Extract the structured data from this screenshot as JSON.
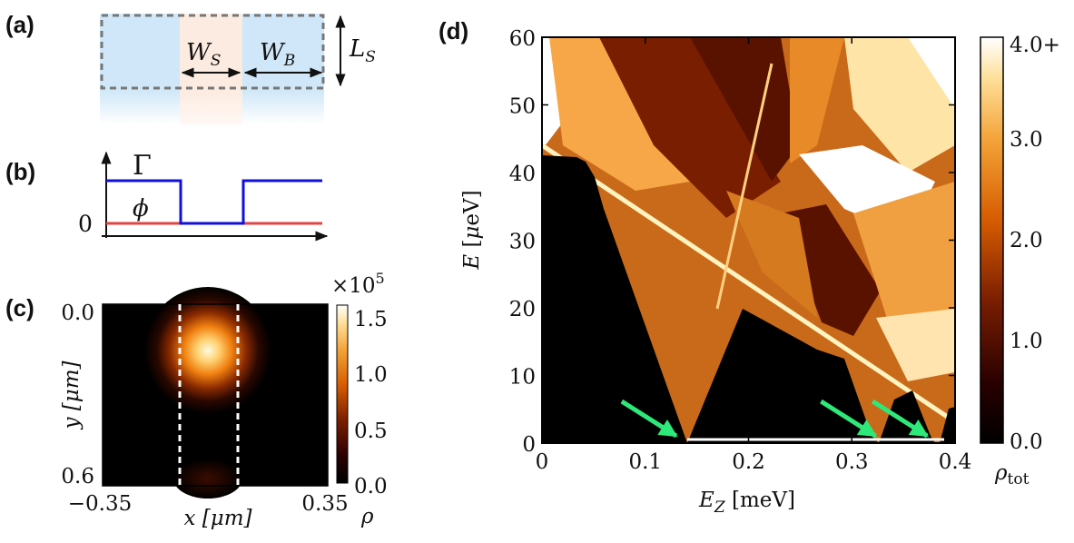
{
  "panels": {
    "a": {
      "label": "(a)",
      "dimension_labels": {
        "superconductor_width": "W",
        "superconductor_width_sub": "S",
        "barrier_width": "W",
        "barrier_width_sub": "B",
        "length": "L",
        "length_sub": "S"
      }
    },
    "b": {
      "label": "(b)",
      "curve_labels": {
        "gamma": "Γ",
        "phi": "ϕ"
      },
      "zero_label": "0",
      "colors": {
        "gamma": "#1010d8",
        "phi": "#e04545"
      }
    },
    "c": {
      "label": "(c)",
      "multiplier": "×10",
      "multiplier_exp": "5",
      "y_ticks": [
        "0.0",
        "0.6"
      ],
      "x_ticks": [
        "−0.35",
        "0.35"
      ],
      "ylabel": "y [μm]",
      "xlabel": "x [μm]",
      "colorbar_ticks": [
        "1.5",
        "1.0",
        "0.5",
        "0.0"
      ],
      "colorbar_label": "ρ"
    },
    "d": {
      "label": "(d)",
      "colorbar_ticks": [
        "4.0+",
        "3.0",
        "2.0",
        "1.0",
        "0.0"
      ],
      "colorbar_label_base": "ρ",
      "colorbar_label_sub": "tot",
      "arrow_color": "#2ee87a"
    }
  },
  "chart_data": [
    {
      "type": "heatmap",
      "panel": "c",
      "title": "",
      "xlabel": "x [μm]",
      "ylabel": "y [μm]",
      "xlim": [
        -0.35,
        0.35
      ],
      "ylim": [
        0.6,
        0.0
      ],
      "x_ticks": [
        -0.35,
        0.35
      ],
      "y_ticks": [
        0.0,
        0.6
      ],
      "colorbar": {
        "label": "ρ",
        "scale": "×10^5",
        "range": [
          0.0,
          1.6
        ],
        "ticks": [
          0.0,
          0.5,
          1.0,
          1.5
        ]
      },
      "peak": {
        "x": 0.0,
        "y": 0.12,
        "value": 1.6
      },
      "dashed_lines_x": [
        -0.1,
        0.1
      ]
    },
    {
      "type": "heatmap",
      "panel": "d",
      "title": "",
      "xlabel": "E_Z [meV]",
      "ylabel": "E [μeV]",
      "xlim": [
        0.0,
        0.4
      ],
      "ylim": [
        0,
        60
      ],
      "x_ticks": [
        0,
        0.1,
        0.2,
        0.3,
        0.4
      ],
      "x_tick_labels": [
        "0",
        "0.1",
        "0.2",
        "0.3",
        "0.4"
      ],
      "y_ticks": [
        0,
        10,
        20,
        30,
        40,
        50,
        60
      ],
      "colorbar": {
        "label": "ρ_tot",
        "range": [
          0.0,
          4.0
        ],
        "ticks": [
          "0.0",
          "1.0",
          "2.0",
          "3.0",
          "4.0+"
        ]
      },
      "gap_boundary": [
        [
          0.0,
          42.5
        ],
        [
          0.05,
          42.2
        ],
        [
          0.137,
          0.0
        ],
        [
          0.196,
          20.0
        ],
        [
          0.29,
          12.0
        ],
        [
          0.33,
          0.0
        ],
        [
          0.355,
          8.0
        ],
        [
          0.38,
          0.0
        ],
        [
          0.4,
          6.0
        ]
      ],
      "zero_energy_states": [
        [
          0.137,
          0.33
        ],
        [
          0.38,
          0.4
        ]
      ],
      "arrows_at_EZ": [
        0.137,
        0.33,
        0.38
      ]
    }
  ]
}
